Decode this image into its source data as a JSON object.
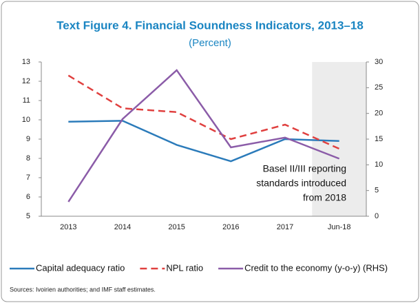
{
  "chart_data": {
    "type": "line",
    "title": "Text Figure 4. Financial Soundness Indicators, 2013–18",
    "subtitle": "(Percent)",
    "categories": [
      "2013",
      "2014",
      "2015",
      "2016",
      "2017",
      "Jun-18"
    ],
    "series": [
      {
        "name": "Capital adequacy ratio",
        "color": "#2b7bba",
        "dash": false,
        "values": [
          9.9,
          9.95,
          8.7,
          7.85,
          9.0,
          8.9
        ]
      },
      {
        "name": "NPL ratio",
        "color": "#e0403f",
        "dash": true,
        "values": [
          12.3,
          10.6,
          10.4,
          9.0,
          9.75,
          8.5
        ]
      },
      {
        "name": "Credit to the economy (y-o-y) (RHS)",
        "color": "#8b5ca8",
        "dash": false,
        "axis": "y2",
        "values": [
          2.8,
          18.9,
          28.4,
          13.4,
          15.3,
          11.2
        ]
      }
    ],
    "ylim": [
      5,
      13
    ],
    "yticks": [
      5,
      6,
      7,
      8,
      9,
      10,
      11,
      12,
      13
    ],
    "y2lim": [
      0,
      30
    ],
    "y2ticks": [
      0,
      5,
      10,
      15,
      20,
      25,
      30
    ],
    "highlight_index": 5,
    "annotation": [
      "Basel II/III reporting",
      "standards introduced",
      "from 2018"
    ],
    "legend": "bottom",
    "source": "Sources: Ivoirien authorities; and IMF staff estimates."
  }
}
